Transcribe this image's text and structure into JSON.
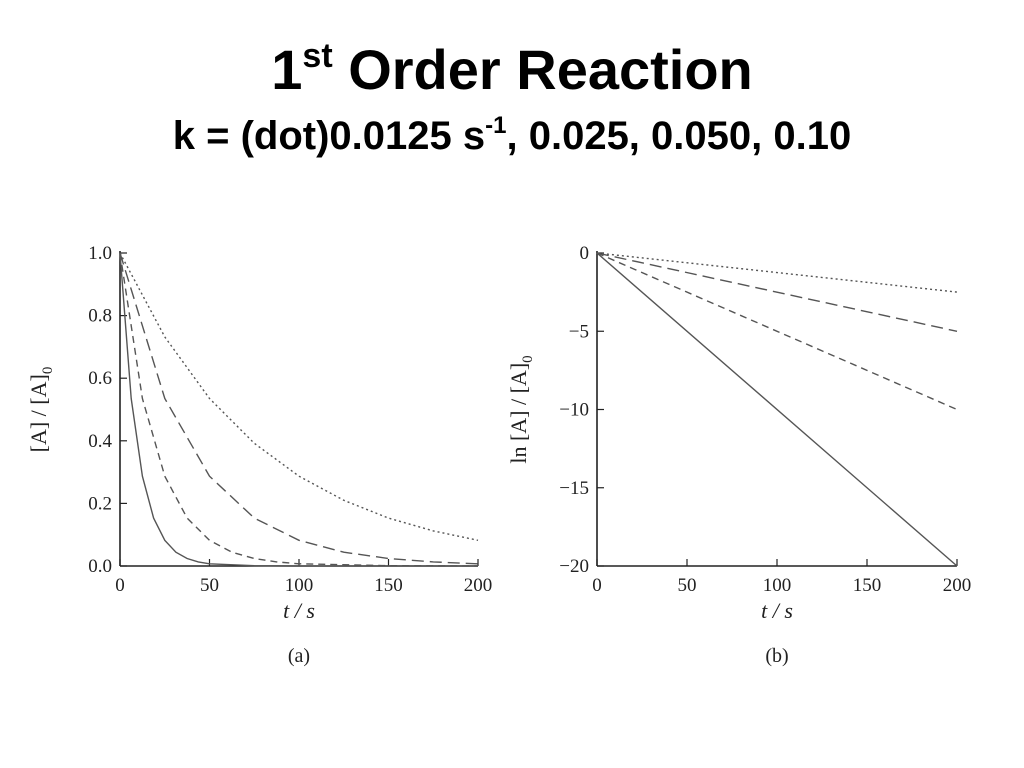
{
  "slide": {
    "title_main": "1",
    "title_sup": "st",
    "title_rest": " Order Reaction",
    "subtitle_pre": "k = (dot)0.0125 s",
    "subtitle_sup": "-1",
    "subtitle_post": ", 0.025, 0.050, 0.10"
  },
  "colors": {
    "axis": "#222222",
    "curve": "#555555"
  },
  "chart_data": [
    {
      "type": "line",
      "panel_label": "(a)",
      "xlabel": "t / s",
      "ylabel": "[A] / [A]",
      "ylabel_sub": "0",
      "xlim": [
        0,
        200
      ],
      "ylim": [
        0,
        1.0
      ],
      "xticks": [
        0,
        50,
        100,
        150,
        200
      ],
      "xtick_labels": [
        "0",
        "50",
        "100",
        "150",
        "200"
      ],
      "yticks": [
        0,
        0.2,
        0.4,
        0.6,
        0.8,
        1.0
      ],
      "ytick_labels": [
        "0.0",
        "0.2",
        "0.4",
        "0.6",
        "0.8",
        "1.0"
      ],
      "grid": false,
      "series": [
        {
          "k": 0.0125,
          "dash": "dotted",
          "x": [
            0,
            25,
            50,
            75,
            100,
            125,
            150,
            175,
            200
          ],
          "y": [
            1.0,
            0.732,
            0.535,
            0.392,
            0.287,
            0.21,
            0.153,
            0.112,
            0.082
          ]
        },
        {
          "k": 0.025,
          "dash": "long-dash",
          "x": [
            0,
            25,
            50,
            75,
            100,
            125,
            150,
            175,
            200
          ],
          "y": [
            1.0,
            0.535,
            0.287,
            0.153,
            0.082,
            0.044,
            0.024,
            0.013,
            0.007
          ]
        },
        {
          "k": 0.05,
          "dash": "dash",
          "x": [
            0,
            12.5,
            25,
            37.5,
            50,
            62.5,
            75,
            87.5,
            100,
            150,
            200
          ],
          "y": [
            1.0,
            0.535,
            0.287,
            0.153,
            0.082,
            0.044,
            0.024,
            0.013,
            0.007,
            0.001,
            0.0
          ]
        },
        {
          "k": 0.1,
          "dash": "solid",
          "x": [
            0,
            6.25,
            12.5,
            18.75,
            25,
            31.25,
            37.5,
            43.75,
            50,
            75,
            100,
            200
          ],
          "y": [
            1.0,
            0.535,
            0.287,
            0.153,
            0.082,
            0.044,
            0.024,
            0.013,
            0.007,
            0.001,
            0.0,
            0.0
          ]
        }
      ]
    },
    {
      "type": "line",
      "panel_label": "(b)",
      "xlabel": "t / s",
      "ylabel": "ln [A] / [A]",
      "ylabel_sub": "0",
      "xlim": [
        0,
        200
      ],
      "ylim": [
        -20,
        0
      ],
      "xticks": [
        0,
        50,
        100,
        150,
        200
      ],
      "xtick_labels": [
        "0",
        "50",
        "100",
        "150",
        "200"
      ],
      "yticks": [
        0,
        -5,
        -10,
        -15,
        -20
      ],
      "ytick_labels": [
        "0",
        "−5",
        "−10",
        "−15",
        "−20"
      ],
      "grid": false,
      "series": [
        {
          "k": 0.0125,
          "dash": "dotted",
          "x": [
            0,
            200
          ],
          "y": [
            0,
            -2.5
          ]
        },
        {
          "k": 0.025,
          "dash": "long-dash",
          "x": [
            0,
            200
          ],
          "y": [
            0,
            -5.0
          ]
        },
        {
          "k": 0.05,
          "dash": "dash",
          "x": [
            0,
            200
          ],
          "y": [
            0,
            -10.0
          ]
        },
        {
          "k": 0.1,
          "dash": "solid",
          "x": [
            0,
            200
          ],
          "y": [
            0,
            -20.0
          ]
        }
      ]
    }
  ]
}
